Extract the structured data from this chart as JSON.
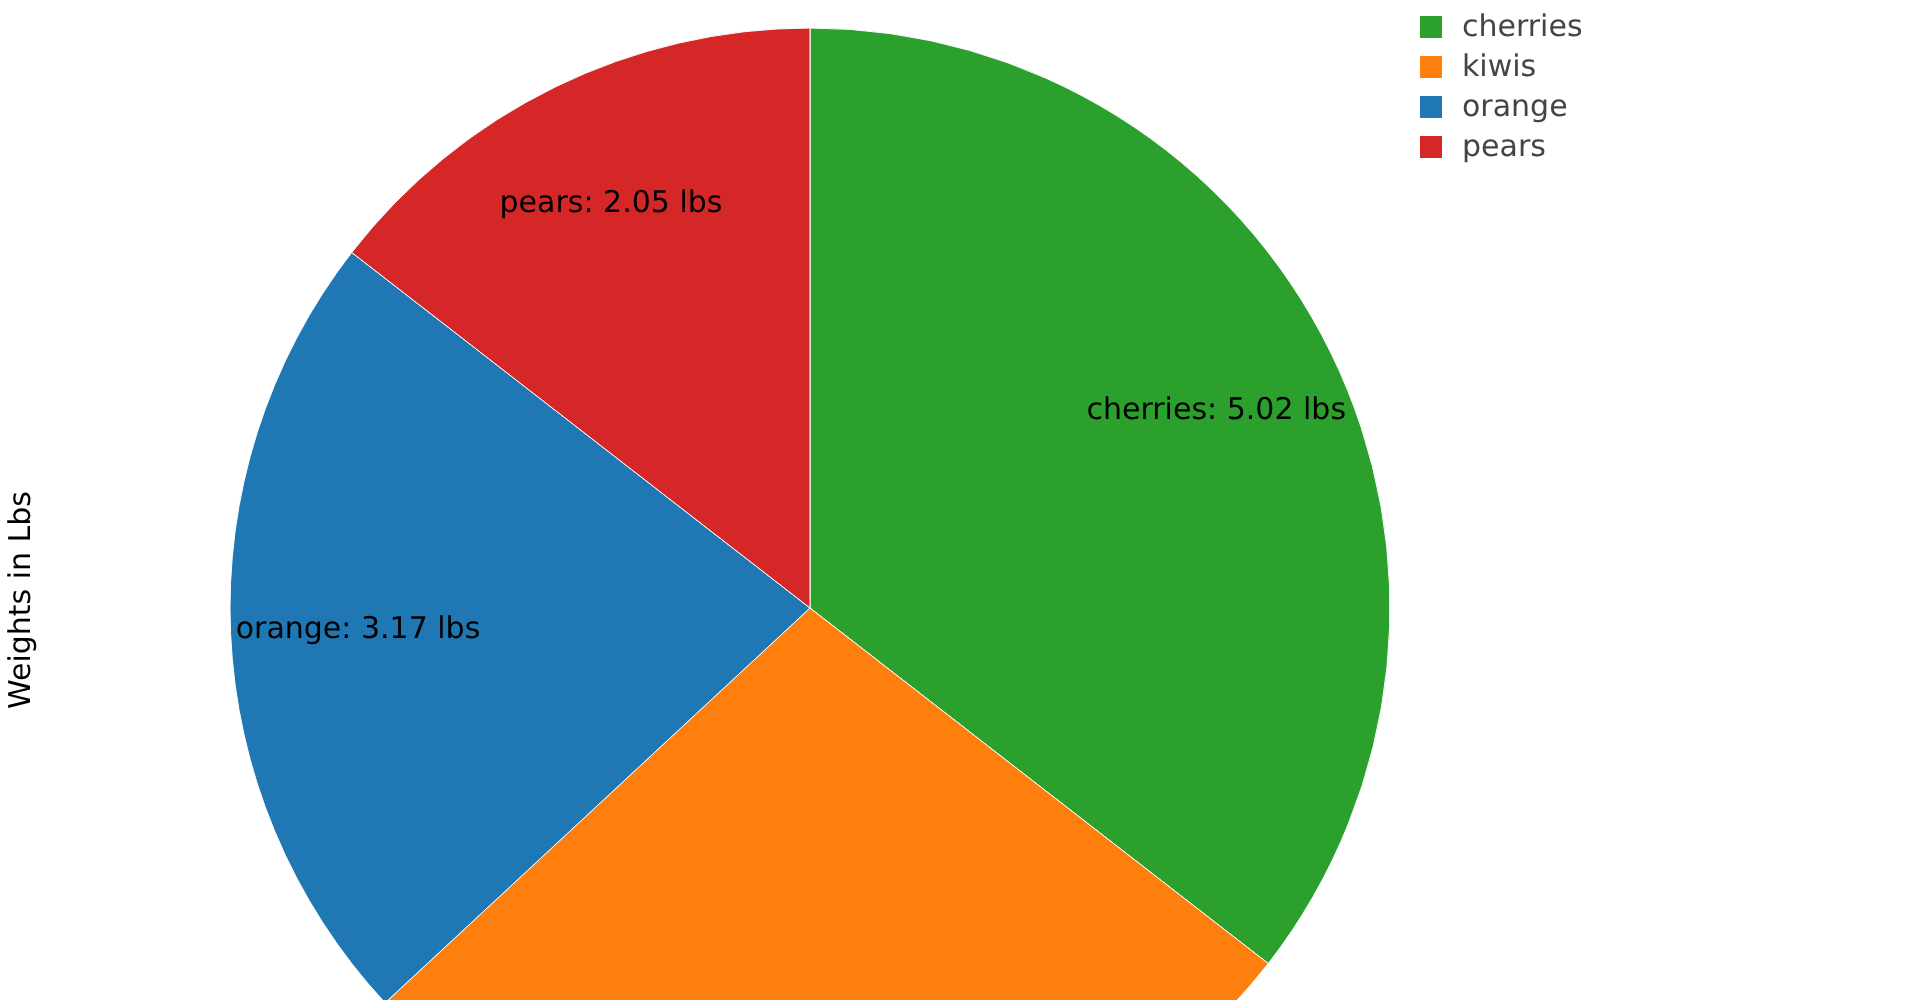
{
  "chart_data": {
    "type": "pie",
    "ylabel": "Weights in Lbs",
    "categories": [
      "cherries",
      "kiwis",
      "orange",
      "pears"
    ],
    "values": [
      5.02,
      3.9,
      3.17,
      2.05
    ],
    "value_labels": [
      "cherries: 5.02 lbs",
      null,
      "orange: 3.17 lbs",
      "pears: 2.05 lbs"
    ],
    "colors": [
      "#2ca02c",
      "#ff7f0e",
      "#1f77b4",
      "#d62728"
    ],
    "legend": "top right"
  }
}
